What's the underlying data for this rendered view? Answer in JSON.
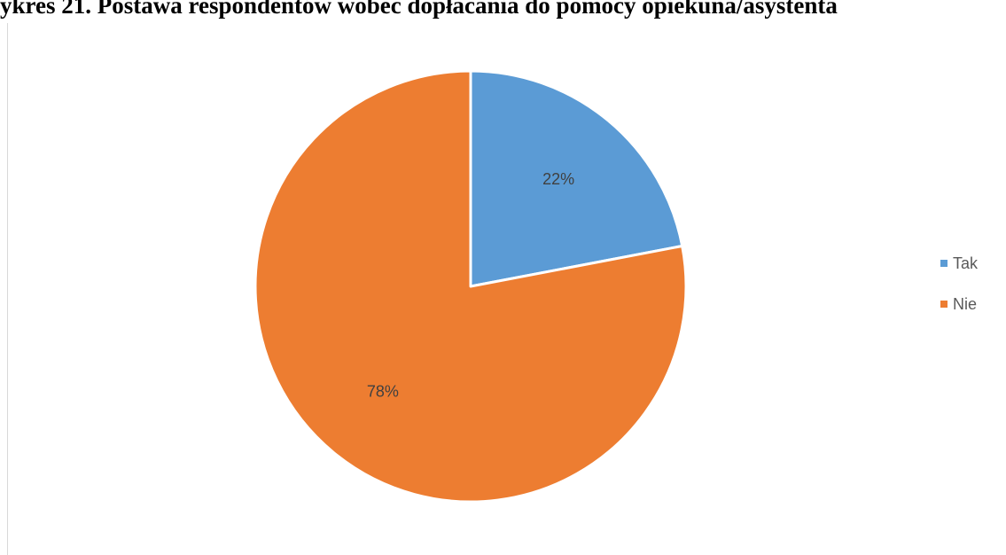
{
  "header": {
    "title": "ykres 21. Postawa respondentów wobec dopłacania do pomocy opiekuna/asystenta"
  },
  "chart_data": {
    "type": "pie",
    "title": "",
    "start_angle_deg": 0,
    "direction": "clockwise",
    "slices": [
      {
        "name": "Tak",
        "value": 22,
        "label": "22%",
        "color": "#5b9bd5"
      },
      {
        "name": "Nie",
        "value": 78,
        "label": "78%",
        "color": "#ed7d31"
      }
    ],
    "legend": {
      "position": "right",
      "items": [
        {
          "name": "Tak",
          "color": "#5b9bd5"
        },
        {
          "name": "Nie",
          "color": "#ed7d31"
        }
      ]
    }
  }
}
